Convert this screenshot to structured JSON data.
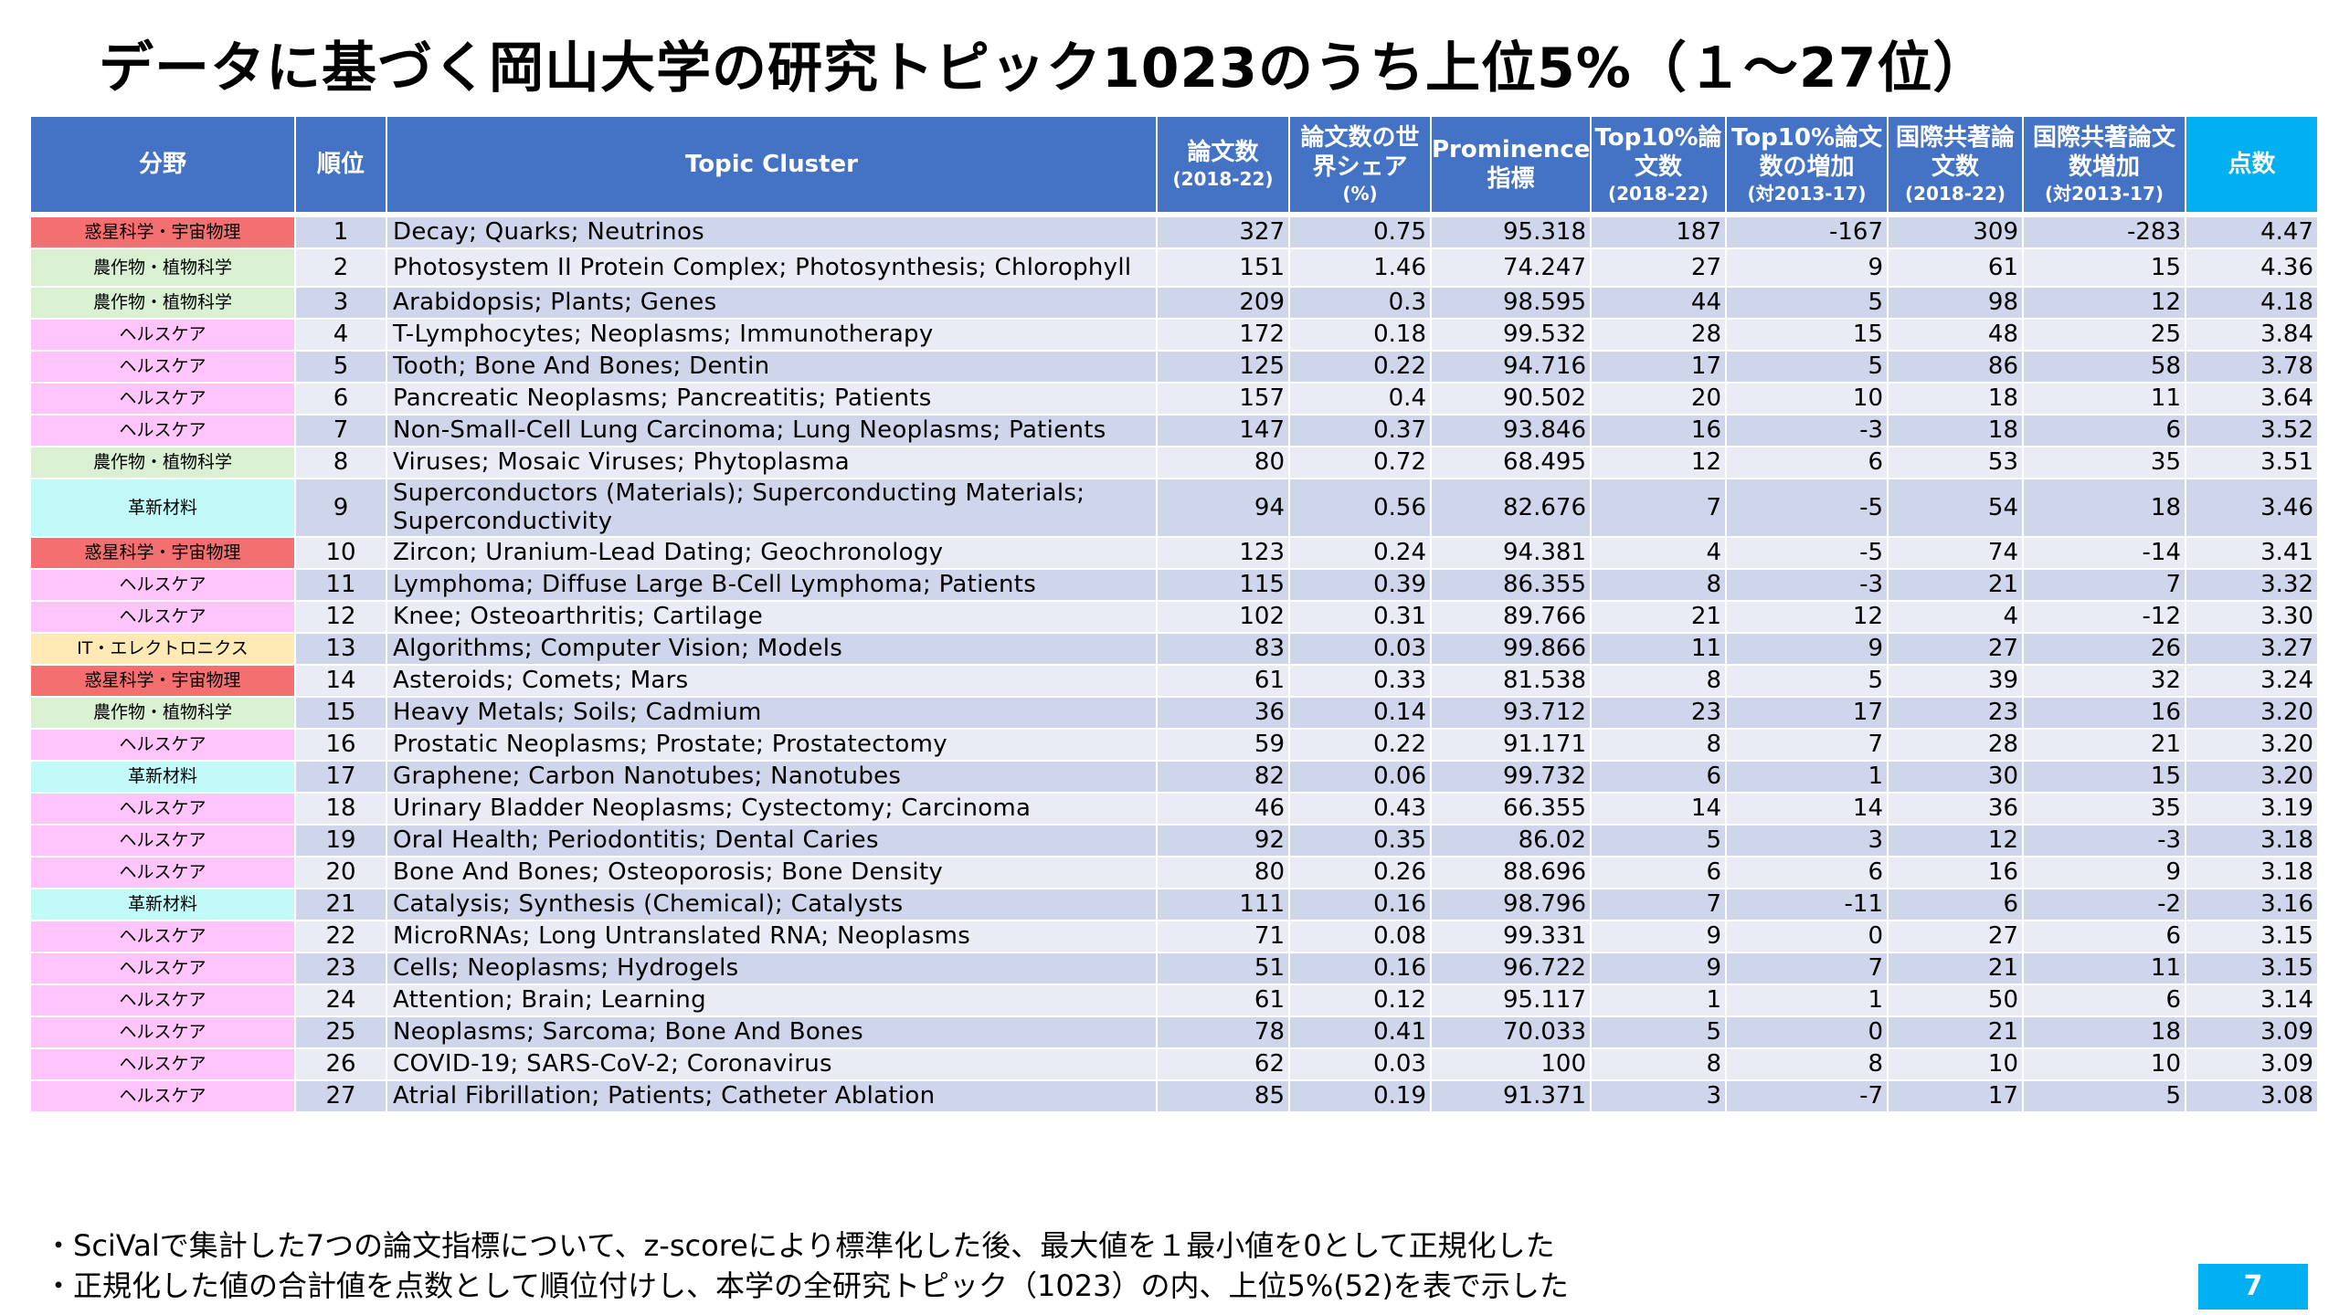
{
  "title": "データに基づく岡山大学の研究トピック1023のうち上位5%（１～27位）",
  "headers": {
    "field": "分野",
    "rank": "順位",
    "topic": "Topic Cluster",
    "papers": {
      "main": "論文数",
      "sub": "(2018-22)"
    },
    "share": {
      "main": "論文数の世界シェア",
      "sub": "(%)"
    },
    "prominence": {
      "main": "Prominence指標"
    },
    "top10": {
      "main": "Top10%論文数",
      "sub": "(2018-22)"
    },
    "top10_inc": {
      "main": "Top10%論文数の増加",
      "sub": "(対2013-17)"
    },
    "intl": {
      "main": "国際共著論文数",
      "sub": "(2018-22)"
    },
    "intl_inc": {
      "main": "国際共著論文数増加",
      "sub": "(対2013-17)"
    },
    "score": "点数"
  },
  "field_colors": {
    "惑星科学・宇宙物理": "#f47070",
    "農作物・植物科学": "#d9f0d3",
    "ヘルスケア": "#ffc5fb",
    "革新材料": "#c2fafa",
    "IT・エレクトロニクス": "#ffe9b5"
  },
  "rows": [
    {
      "field": "惑星科学・宇宙物理",
      "rank": "1",
      "topic": "Decay; Quarks; Neutrinos",
      "papers": "327",
      "share": "0.75",
      "prominence": "95.318",
      "top10": "187",
      "top10_inc": "-167",
      "intl": "309",
      "intl_inc": "-283",
      "score": "4.47"
    },
    {
      "field": "農作物・植物科学",
      "rank": "2",
      "topic": "Photosystem II Protein Complex; Photosynthesis; Chlorophyll",
      "papers": "151",
      "share": "1.46",
      "prominence": "74.247",
      "top10": "27",
      "top10_inc": "9",
      "intl": "61",
      "intl_inc": "15",
      "score": "4.36"
    },
    {
      "field": "農作物・植物科学",
      "rank": "3",
      "topic": "Arabidopsis; Plants; Genes",
      "papers": "209",
      "share": "0.3",
      "prominence": "98.595",
      "top10": "44",
      "top10_inc": "5",
      "intl": "98",
      "intl_inc": "12",
      "score": "4.18"
    },
    {
      "field": "ヘルスケア",
      "rank": "4",
      "topic": "T-Lymphocytes; Neoplasms; Immunotherapy",
      "papers": "172",
      "share": "0.18",
      "prominence": "99.532",
      "top10": "28",
      "top10_inc": "15",
      "intl": "48",
      "intl_inc": "25",
      "score": "3.84"
    },
    {
      "field": "ヘルスケア",
      "rank": "5",
      "topic": "Tooth; Bone And Bones; Dentin",
      "papers": "125",
      "share": "0.22",
      "prominence": "94.716",
      "top10": "17",
      "top10_inc": "5",
      "intl": "86",
      "intl_inc": "58",
      "score": "3.78"
    },
    {
      "field": "ヘルスケア",
      "rank": "6",
      "topic": "Pancreatic Neoplasms; Pancreatitis; Patients",
      "papers": "157",
      "share": "0.4",
      "prominence": "90.502",
      "top10": "20",
      "top10_inc": "10",
      "intl": "18",
      "intl_inc": "11",
      "score": "3.64"
    },
    {
      "field": "ヘルスケア",
      "rank": "7",
      "topic": "Non-Small-Cell Lung Carcinoma; Lung Neoplasms; Patients",
      "papers": "147",
      "share": "0.37",
      "prominence": "93.846",
      "top10": "16",
      "top10_inc": "-3",
      "intl": "18",
      "intl_inc": "6",
      "score": "3.52"
    },
    {
      "field": "農作物・植物科学",
      "rank": "8",
      "topic": "Viruses; Mosaic Viruses; Phytoplasma",
      "papers": "80",
      "share": "0.72",
      "prominence": "68.495",
      "top10": "12",
      "top10_inc": "6",
      "intl": "53",
      "intl_inc": "35",
      "score": "3.51"
    },
    {
      "field": "革新材料",
      "rank": "9",
      "topic": "Superconductors (Materials); Superconducting Materials; Superconductivity",
      "papers": "94",
      "share": "0.56",
      "prominence": "82.676",
      "top10": "7",
      "top10_inc": "-5",
      "intl": "54",
      "intl_inc": "18",
      "score": "3.46"
    },
    {
      "field": "惑星科学・宇宙物理",
      "rank": "10",
      "topic": "Zircon; Uranium-Lead Dating; Geochronology",
      "papers": "123",
      "share": "0.24",
      "prominence": "94.381",
      "top10": "4",
      "top10_inc": "-5",
      "intl": "74",
      "intl_inc": "-14",
      "score": "3.41"
    },
    {
      "field": "ヘルスケア",
      "rank": "11",
      "topic": "Lymphoma; Diffuse Large B-Cell Lymphoma; Patients",
      "papers": "115",
      "share": "0.39",
      "prominence": "86.355",
      "top10": "8",
      "top10_inc": "-3",
      "intl": "21",
      "intl_inc": "7",
      "score": "3.32"
    },
    {
      "field": "ヘルスケア",
      "rank": "12",
      "topic": "Knee; Osteoarthritis; Cartilage",
      "papers": "102",
      "share": "0.31",
      "prominence": "89.766",
      "top10": "21",
      "top10_inc": "12",
      "intl": "4",
      "intl_inc": "-12",
      "score": "3.30"
    },
    {
      "field": "IT・エレクトロニクス",
      "rank": "13",
      "topic": "Algorithms; Computer Vision; Models",
      "papers": "83",
      "share": "0.03",
      "prominence": "99.866",
      "top10": "11",
      "top10_inc": "9",
      "intl": "27",
      "intl_inc": "26",
      "score": "3.27"
    },
    {
      "field": "惑星科学・宇宙物理",
      "rank": "14",
      "topic": "Asteroids; Comets; Mars",
      "papers": "61",
      "share": "0.33",
      "prominence": "81.538",
      "top10": "8",
      "top10_inc": "5",
      "intl": "39",
      "intl_inc": "32",
      "score": "3.24"
    },
    {
      "field": "農作物・植物科学",
      "rank": "15",
      "topic": "Heavy Metals; Soils; Cadmium",
      "papers": "36",
      "share": "0.14",
      "prominence": "93.712",
      "top10": "23",
      "top10_inc": "17",
      "intl": "23",
      "intl_inc": "16",
      "score": "3.20"
    },
    {
      "field": "ヘルスケア",
      "rank": "16",
      "topic": "Prostatic Neoplasms; Prostate; Prostatectomy",
      "papers": "59",
      "share": "0.22",
      "prominence": "91.171",
      "top10": "8",
      "top10_inc": "7",
      "intl": "28",
      "intl_inc": "21",
      "score": "3.20"
    },
    {
      "field": "革新材料",
      "rank": "17",
      "topic": "Graphene; Carbon Nanotubes; Nanotubes",
      "papers": "82",
      "share": "0.06",
      "prominence": "99.732",
      "top10": "6",
      "top10_inc": "1",
      "intl": "30",
      "intl_inc": "15",
      "score": "3.20"
    },
    {
      "field": "ヘルスケア",
      "rank": "18",
      "topic": "Urinary Bladder Neoplasms; Cystectomy; Carcinoma",
      "papers": "46",
      "share": "0.43",
      "prominence": "66.355",
      "top10": "14",
      "top10_inc": "14",
      "intl": "36",
      "intl_inc": "35",
      "score": "3.19"
    },
    {
      "field": "ヘルスケア",
      "rank": "19",
      "topic": "Oral Health; Periodontitis; Dental Caries",
      "papers": "92",
      "share": "0.35",
      "prominence": "86.02",
      "top10": "5",
      "top10_inc": "3",
      "intl": "12",
      "intl_inc": "-3",
      "score": "3.18"
    },
    {
      "field": "ヘルスケア",
      "rank": "20",
      "topic": "Bone And Bones; Osteoporosis; Bone Density",
      "papers": "80",
      "share": "0.26",
      "prominence": "88.696",
      "top10": "6",
      "top10_inc": "6",
      "intl": "16",
      "intl_inc": "9",
      "score": "3.18"
    },
    {
      "field": "革新材料",
      "rank": "21",
      "topic": "Catalysis; Synthesis (Chemical); Catalysts",
      "papers": "111",
      "share": "0.16",
      "prominence": "98.796",
      "top10": "7",
      "top10_inc": "-11",
      "intl": "6",
      "intl_inc": "-2",
      "score": "3.16"
    },
    {
      "field": "ヘルスケア",
      "rank": "22",
      "topic": "MicroRNAs; Long Untranslated RNA; Neoplasms",
      "papers": "71",
      "share": "0.08",
      "prominence": "99.331",
      "top10": "9",
      "top10_inc": "0",
      "intl": "27",
      "intl_inc": "6",
      "score": "3.15"
    },
    {
      "field": "ヘルスケア",
      "rank": "23",
      "topic": "Cells; Neoplasms; Hydrogels",
      "papers": "51",
      "share": "0.16",
      "prominence": "96.722",
      "top10": "9",
      "top10_inc": "7",
      "intl": "21",
      "intl_inc": "11",
      "score": "3.15"
    },
    {
      "field": "ヘルスケア",
      "rank": "24",
      "topic": "Attention; Brain; Learning",
      "papers": "61",
      "share": "0.12",
      "prominence": "95.117",
      "top10": "1",
      "top10_inc": "1",
      "intl": "50",
      "intl_inc": "6",
      "score": "3.14"
    },
    {
      "field": "ヘルスケア",
      "rank": "25",
      "topic": "Neoplasms; Sarcoma; Bone And Bones",
      "papers": "78",
      "share": "0.41",
      "prominence": "70.033",
      "top10": "5",
      "top10_inc": "0",
      "intl": "21",
      "intl_inc": "18",
      "score": "3.09"
    },
    {
      "field": "ヘルスケア",
      "rank": "26",
      "topic": "COVID-19; SARS-CoV-2; Coronavirus",
      "papers": "62",
      "share": "0.03",
      "prominence": "100",
      "top10": "8",
      "top10_inc": "8",
      "intl": "10",
      "intl_inc": "10",
      "score": "3.09"
    },
    {
      "field": "ヘルスケア",
      "rank": "27",
      "topic": "Atrial Fibrillation; Patients; Catheter Ablation",
      "papers": "85",
      "share": "0.19",
      "prominence": "91.371",
      "top10": "3",
      "top10_inc": "-7",
      "intl": "17",
      "intl_inc": "5",
      "score": "3.08"
    }
  ],
  "notes": [
    "・SciValで集計した7つの論文指標について、z-scoreにより標準化した後、最大値を１最小値を0として正規化した",
    "・正規化した値の合計値を点数として順位付けし、本学の全研究トピック（1023）の内、上位5%(52)を表で示した"
  ],
  "page_number": "7"
}
